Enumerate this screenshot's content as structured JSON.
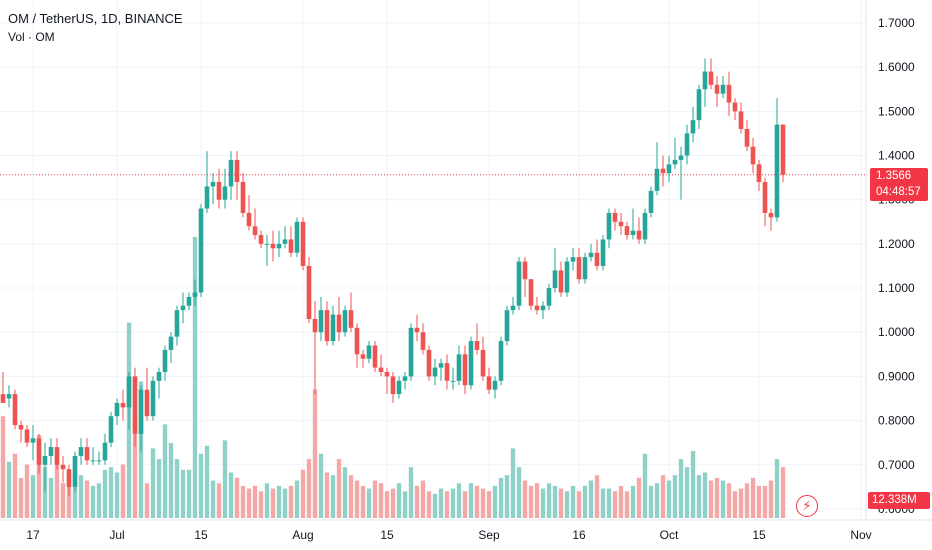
{
  "legend": {
    "title": "OM / TetherUS, 1D, BINANCE",
    "volume_label": "Vol · OM"
  },
  "last_price": {
    "value": "1.3566",
    "countdown": "04:48:57",
    "price": 1.3566
  },
  "volume_readout": "12.338M",
  "colors": {
    "up": "#26a69a",
    "down": "#ef5350",
    "up_volume": "#8fd0c8",
    "down_volume": "#f3a7a6",
    "price_line": "#f23645",
    "axis_text": "#131722"
  },
  "icons": [
    "flash-icon"
  ],
  "chart_data": {
    "type": "candlestick",
    "y_axis": {
      "ylim": [
        0.575,
        1.752
      ],
      "ticks": [
        "0.6000",
        "0.7000",
        "0.8000",
        "0.9000",
        "1.0000",
        "1.1000",
        "1.2000",
        "1.3000",
        "1.4000",
        "1.5000",
        "1.6000",
        "1.7000"
      ],
      "tick_values": [
        0.6,
        0.7,
        0.8,
        0.9,
        1.0,
        1.1,
        1.2,
        1.3,
        1.4,
        1.5,
        1.6,
        1.7
      ],
      "position": "right"
    },
    "x_axis": {
      "tick_labels": [
        "17",
        "Jul",
        "15",
        "Aug",
        "15",
        "Sep",
        "16",
        "Oct",
        "15",
        "Nov"
      ],
      "tick_index": [
        5,
        19,
        33,
        50,
        64,
        81,
        96,
        111,
        126,
        143
      ]
    },
    "grid": true,
    "candles": [
      [
        0.86,
        0.91,
        0.84,
        0.84
      ],
      [
        0.85,
        0.88,
        0.83,
        0.86
      ],
      [
        0.86,
        0.87,
        0.78,
        0.79
      ],
      [
        0.79,
        0.8,
        0.75,
        0.78
      ],
      [
        0.78,
        0.79,
        0.74,
        0.75
      ],
      [
        0.75,
        0.79,
        0.71,
        0.76
      ],
      [
        0.76,
        0.77,
        0.68,
        0.7
      ],
      [
        0.7,
        0.75,
        0.64,
        0.72
      ],
      [
        0.72,
        0.76,
        0.7,
        0.74
      ],
      [
        0.74,
        0.76,
        0.69,
        0.7
      ],
      [
        0.7,
        0.72,
        0.66,
        0.69
      ],
      [
        0.69,
        0.7,
        0.63,
        0.65
      ],
      [
        0.65,
        0.73,
        0.64,
        0.72
      ],
      [
        0.72,
        0.76,
        0.7,
        0.74
      ],
      [
        0.74,
        0.76,
        0.7,
        0.71
      ],
      [
        0.71,
        0.74,
        0.7,
        0.71
      ],
      [
        0.71,
        0.73,
        0.7,
        0.71
      ],
      [
        0.71,
        0.77,
        0.7,
        0.75
      ],
      [
        0.75,
        0.82,
        0.74,
        0.81
      ],
      [
        0.81,
        0.85,
        0.79,
        0.84
      ],
      [
        0.84,
        0.87,
        0.8,
        0.83
      ],
      [
        0.83,
        0.91,
        0.78,
        0.9
      ],
      [
        0.9,
        0.92,
        0.74,
        0.77
      ],
      [
        0.77,
        0.88,
        0.73,
        0.87
      ],
      [
        0.87,
        0.92,
        0.8,
        0.81
      ],
      [
        0.81,
        0.9,
        0.8,
        0.89
      ],
      [
        0.89,
        0.92,
        0.85,
        0.91
      ],
      [
        0.91,
        0.97,
        0.89,
        0.96
      ],
      [
        0.96,
        1.0,
        0.93,
        0.99
      ],
      [
        0.99,
        1.06,
        0.97,
        1.05
      ],
      [
        1.05,
        1.09,
        1.02,
        1.06
      ],
      [
        1.06,
        1.09,
        1.05,
        1.08
      ],
      [
        1.08,
        1.12,
        1.06,
        1.09
      ],
      [
        1.09,
        1.29,
        1.08,
        1.28
      ],
      [
        1.28,
        1.41,
        1.27,
        1.33
      ],
      [
        1.33,
        1.36,
        1.29,
        1.34
      ],
      [
        1.34,
        1.37,
        1.28,
        1.3
      ],
      [
        1.3,
        1.37,
        1.28,
        1.33
      ],
      [
        1.33,
        1.41,
        1.3,
        1.39
      ],
      [
        1.39,
        1.41,
        1.3,
        1.34
      ],
      [
        1.34,
        1.36,
        1.26,
        1.27
      ],
      [
        1.27,
        1.31,
        1.23,
        1.24
      ],
      [
        1.24,
        1.28,
        1.21,
        1.22
      ],
      [
        1.22,
        1.23,
        1.19,
        1.2
      ],
      [
        1.2,
        1.22,
        1.15,
        1.2
      ],
      [
        1.2,
        1.23,
        1.16,
        1.19
      ],
      [
        1.19,
        1.23,
        1.17,
        1.2
      ],
      [
        1.2,
        1.24,
        1.19,
        1.21
      ],
      [
        1.21,
        1.24,
        1.17,
        1.18
      ],
      [
        1.18,
        1.26,
        1.17,
        1.25
      ],
      [
        1.25,
        1.26,
        1.14,
        1.15
      ],
      [
        1.15,
        1.17,
        1.02,
        1.03
      ],
      [
        1.03,
        1.07,
        0.86,
        1.0
      ],
      [
        1.0,
        1.08,
        0.98,
        1.05
      ],
      [
        1.05,
        1.07,
        0.97,
        0.98
      ],
      [
        0.98,
        1.06,
        0.97,
        1.04
      ],
      [
        1.04,
        1.08,
        0.98,
        1.0
      ],
      [
        1.0,
        1.06,
        0.99,
        1.05
      ],
      [
        1.05,
        1.09,
        1.0,
        1.01
      ],
      [
        1.01,
        1.02,
        0.92,
        0.95
      ],
      [
        0.95,
        0.96,
        0.92,
        0.94
      ],
      [
        0.94,
        0.98,
        0.93,
        0.97
      ],
      [
        0.97,
        0.98,
        0.91,
        0.92
      ],
      [
        0.92,
        0.95,
        0.9,
        0.91
      ],
      [
        0.91,
        0.92,
        0.86,
        0.9
      ],
      [
        0.9,
        0.91,
        0.84,
        0.86
      ],
      [
        0.86,
        0.9,
        0.85,
        0.89
      ],
      [
        0.89,
        0.91,
        0.87,
        0.9
      ],
      [
        0.9,
        1.02,
        0.89,
        1.01
      ],
      [
        1.01,
        1.04,
        0.98,
        1.0
      ],
      [
        1.0,
        1.02,
        0.95,
        0.96
      ],
      [
        0.96,
        0.97,
        0.89,
        0.9
      ],
      [
        0.9,
        0.94,
        0.88,
        0.92
      ],
      [
        0.92,
        0.94,
        0.89,
        0.93
      ],
      [
        0.93,
        0.95,
        0.87,
        0.89
      ],
      [
        0.89,
        0.92,
        0.87,
        0.89
      ],
      [
        0.89,
        0.97,
        0.88,
        0.95
      ],
      [
        0.95,
        0.97,
        0.86,
        0.88
      ],
      [
        0.88,
        0.99,
        0.87,
        0.98
      ],
      [
        0.98,
        1.02,
        0.95,
        0.96
      ],
      [
        0.96,
        0.99,
        0.89,
        0.9
      ],
      [
        0.9,
        0.92,
        0.86,
        0.87
      ],
      [
        0.87,
        0.9,
        0.85,
        0.89
      ],
      [
        0.89,
        0.99,
        0.88,
        0.98
      ],
      [
        0.98,
        1.06,
        0.97,
        1.05
      ],
      [
        1.05,
        1.08,
        1.04,
        1.06
      ],
      [
        1.06,
        1.17,
        1.05,
        1.16
      ],
      [
        1.16,
        1.17,
        1.08,
        1.12
      ],
      [
        1.12,
        1.12,
        1.05,
        1.06
      ],
      [
        1.06,
        1.08,
        1.04,
        1.05
      ],
      [
        1.05,
        1.07,
        1.03,
        1.06
      ],
      [
        1.06,
        1.11,
        1.05,
        1.1
      ],
      [
        1.1,
        1.19,
        1.09,
        1.14
      ],
      [
        1.14,
        1.16,
        1.08,
        1.09
      ],
      [
        1.09,
        1.17,
        1.08,
        1.16
      ],
      [
        1.16,
        1.19,
        1.14,
        1.17
      ],
      [
        1.17,
        1.19,
        1.11,
        1.12
      ],
      [
        1.12,
        1.18,
        1.11,
        1.17
      ],
      [
        1.17,
        1.2,
        1.16,
        1.18
      ],
      [
        1.18,
        1.21,
        1.14,
        1.15
      ],
      [
        1.15,
        1.22,
        1.14,
        1.21
      ],
      [
        1.21,
        1.28,
        1.19,
        1.27
      ],
      [
        1.27,
        1.28,
        1.23,
        1.25
      ],
      [
        1.25,
        1.27,
        1.22,
        1.24
      ],
      [
        1.24,
        1.25,
        1.21,
        1.22
      ],
      [
        1.22,
        1.28,
        1.21,
        1.23
      ],
      [
        1.23,
        1.26,
        1.2,
        1.21
      ],
      [
        1.21,
        1.28,
        1.2,
        1.27
      ],
      [
        1.27,
        1.33,
        1.26,
        1.32
      ],
      [
        1.32,
        1.43,
        1.31,
        1.37
      ],
      [
        1.37,
        1.4,
        1.33,
        1.36
      ],
      [
        1.36,
        1.4,
        1.34,
        1.38
      ],
      [
        1.38,
        1.44,
        1.37,
        1.39
      ],
      [
        1.39,
        1.42,
        1.3,
        1.4
      ],
      [
        1.4,
        1.47,
        1.38,
        1.45
      ],
      [
        1.45,
        1.51,
        1.43,
        1.48
      ],
      [
        1.48,
        1.56,
        1.46,
        1.55
      ],
      [
        1.55,
        1.62,
        1.51,
        1.59
      ],
      [
        1.59,
        1.62,
        1.55,
        1.56
      ],
      [
        1.56,
        1.58,
        1.51,
        1.54
      ],
      [
        1.54,
        1.58,
        1.53,
        1.56
      ],
      [
        1.56,
        1.59,
        1.49,
        1.52
      ],
      [
        1.52,
        1.53,
        1.48,
        1.5
      ],
      [
        1.5,
        1.52,
        1.45,
        1.46
      ],
      [
        1.46,
        1.48,
        1.41,
        1.42
      ],
      [
        1.42,
        1.44,
        1.36,
        1.38
      ],
      [
        1.38,
        1.39,
        1.32,
        1.34
      ],
      [
        1.34,
        1.35,
        1.24,
        1.27
      ],
      [
        1.27,
        1.28,
        1.23,
        1.26
      ],
      [
        1.26,
        1.53,
        1.25,
        1.47
      ],
      [
        1.47,
        1.47,
        1.34,
        1.3566
      ]
    ],
    "candle_index_start": 0,
    "volume_axis_max": 13.0,
    "volumes": [
      3.8,
      2.1,
      2.4,
      1.5,
      2.0,
      1.6,
      3.1,
      1.9,
      1.5,
      2.0,
      1.3,
      1.2,
      1.9,
      1.6,
      1.4,
      1.2,
      1.3,
      1.8,
      1.9,
      1.7,
      2.0,
      7.3,
      3.8,
      5.1,
      1.3,
      2.6,
      2.2,
      3.5,
      2.8,
      2.2,
      1.8,
      1.8,
      10.5,
      2.4,
      2.7,
      1.4,
      1.3,
      2.9,
      1.7,
      1.5,
      1.2,
      1.1,
      1.2,
      1.0,
      1.3,
      1.1,
      1.2,
      1.1,
      1.2,
      1.4,
      1.8,
      2.2,
      4.8,
      2.4,
      1.7,
      1.6,
      2.2,
      1.9,
      1.6,
      1.4,
      1.2,
      1.1,
      1.4,
      1.3,
      1.0,
      1.1,
      1.3,
      1.0,
      1.9,
      1.2,
      1.4,
      1.0,
      0.9,
      1.1,
      1.0,
      1.1,
      1.3,
      1.0,
      1.3,
      1.2,
      1.1,
      1.0,
      1.2,
      1.5,
      1.6,
      2.6,
      1.9,
      1.4,
      1.2,
      1.3,
      1.1,
      1.3,
      1.2,
      1.1,
      1.0,
      1.2,
      1.0,
      1.2,
      1.4,
      1.6,
      1.1,
      1.1,
      1.0,
      1.2,
      1.0,
      1.2,
      1.5,
      2.4,
      1.2,
      1.3,
      1.6,
      1.4,
      1.6,
      2.2,
      1.9,
      2.5,
      1.6,
      1.7,
      1.4,
      1.5,
      1.4,
      1.3,
      1.0,
      1.1,
      1.3,
      1.5,
      1.2,
      1.2,
      1.4,
      2.2,
      1.9
    ],
    "price_line": 1.3566
  }
}
